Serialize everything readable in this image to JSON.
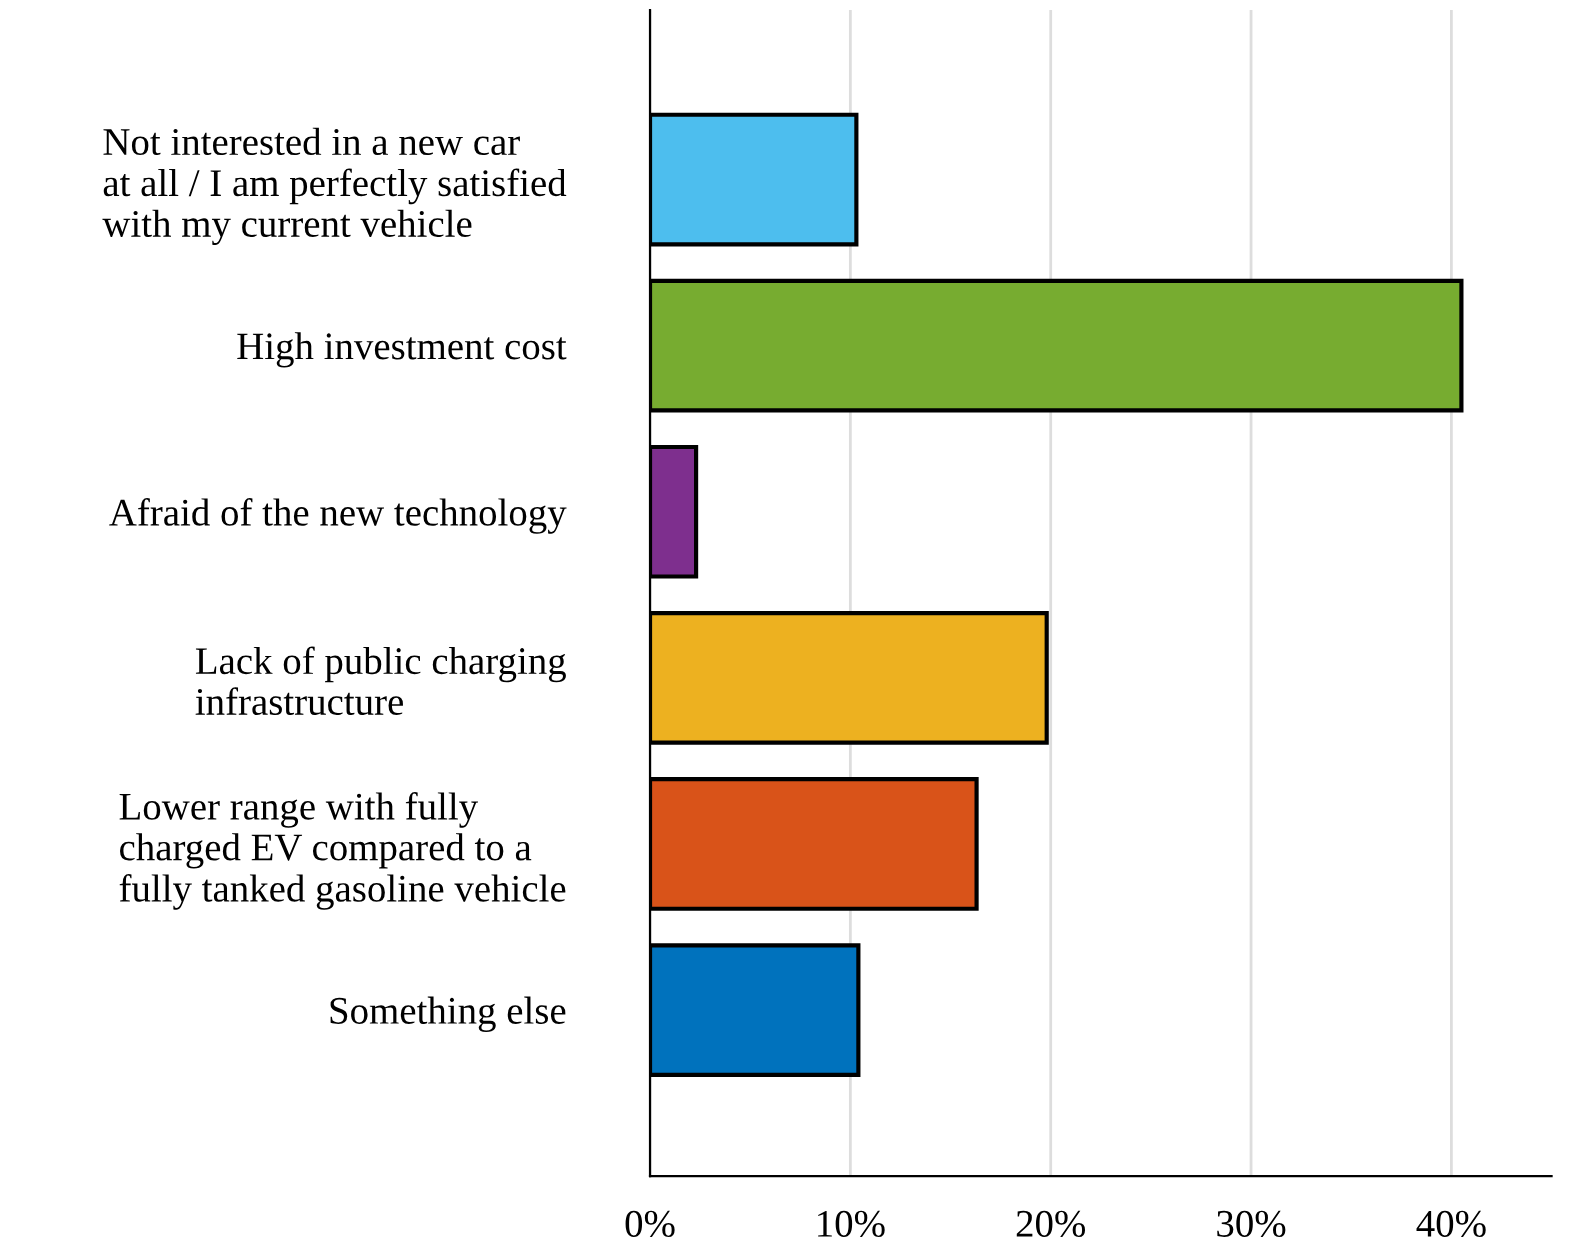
{
  "chart_data": {
    "type": "bar",
    "orientation": "horizontal",
    "categories": [
      "Not interested in a new car\nat all / I am perfectly satisfied\nwith my current vehicle",
      "High investment cost",
      "Afraid of the new technology",
      "Lack of public charging\ninfrastructure",
      "Lower range with fully\ncharged EV compared to a\nfully tanked gasoline vehicle",
      "Something else"
    ],
    "values": [
      10.3,
      40.5,
      2.3,
      19.8,
      16.3,
      10.4
    ],
    "colors": [
      "#4dbeee",
      "#77ac30",
      "#7e2f8e",
      "#edb120",
      "#d95319",
      "#0072bd"
    ],
    "xlim": [
      0,
      45
    ],
    "xticks": [
      {
        "value": 0,
        "label": "0%"
      },
      {
        "value": 10,
        "label": "10%"
      },
      {
        "value": 20,
        "label": "20%"
      },
      {
        "value": 30,
        "label": "30%"
      },
      {
        "value": 40,
        "label": "40%"
      }
    ],
    "grid": "x",
    "legend": false
  }
}
